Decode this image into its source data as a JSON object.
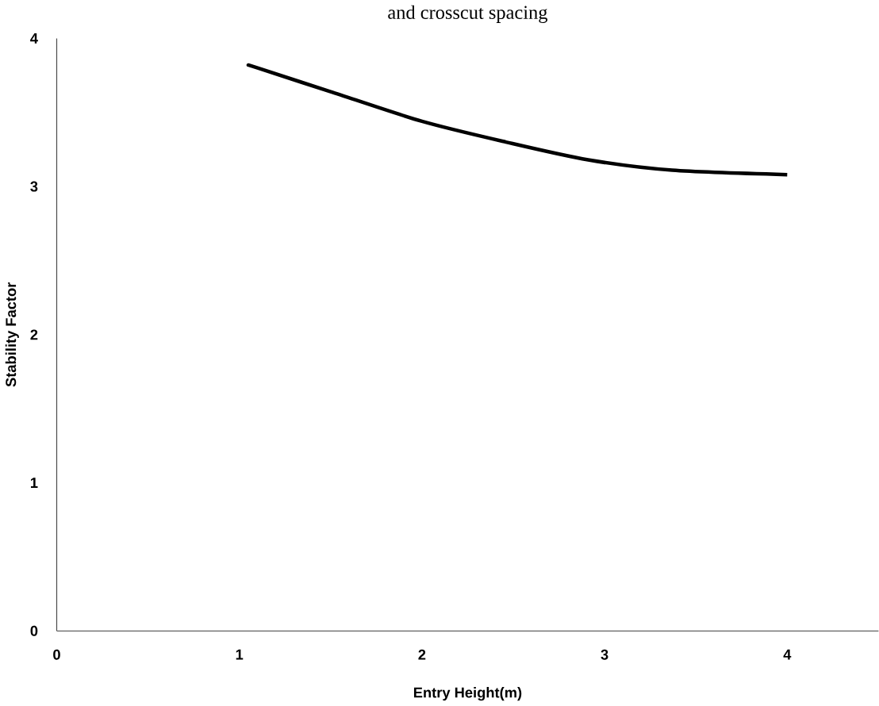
{
  "chart_data": {
    "type": "line",
    "title": "and crosscut spacing",
    "xlabel": "Entry Height(m)",
    "ylabel": "Stability Factor",
    "series": [
      {
        "color": "#000000",
        "x": [
          1.05,
          1.1,
          1.5,
          2.0,
          2.46,
          2.91,
          3.37,
          4.0
        ],
        "values": [
          3.82,
          3.8,
          3.64,
          3.44,
          3.3,
          3.18,
          3.11,
          3.08
        ]
      }
    ],
    "xlim": [
      0,
      4.5
    ],
    "ylim": [
      0,
      4
    ],
    "xticks": [
      0,
      1,
      2,
      3,
      4
    ],
    "yticks": [
      0,
      1,
      2,
      3,
      4
    ],
    "grid": false,
    "marker": "none",
    "line_style": "solid"
  }
}
